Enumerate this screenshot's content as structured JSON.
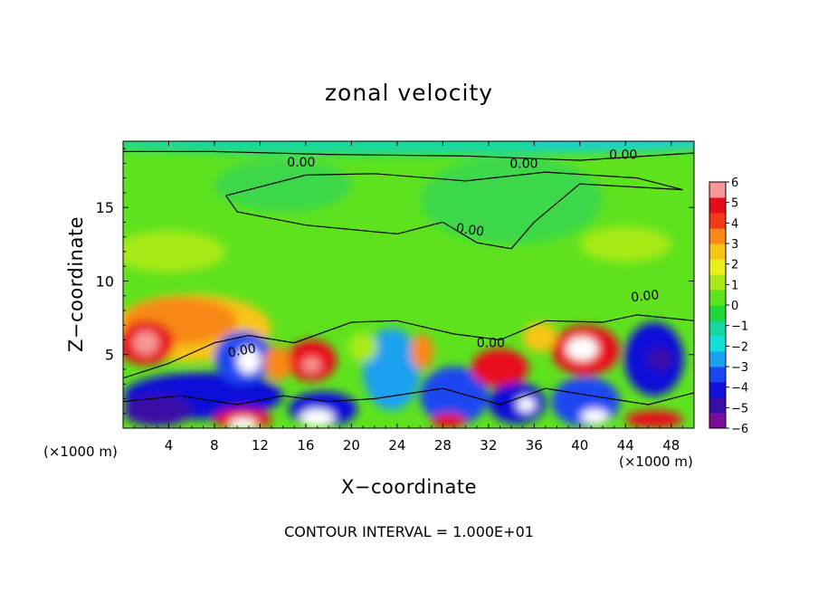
{
  "chart_data": {
    "type": "heatmap",
    "title": "zonal velocity",
    "xlabel": "X−coordinate",
    "ylabel": "Z−coordinate",
    "x_unit": "(×1000 m)",
    "xlim": [
      0,
      50
    ],
    "ylim": [
      0,
      19.5
    ],
    "x_ticks": [
      4,
      8,
      12,
      16,
      20,
      24,
      28,
      32,
      36,
      40,
      44,
      48
    ],
    "y_ticks": [
      5,
      10,
      15
    ],
    "colorbar": {
      "min": -6,
      "max": 6,
      "tick_labels": [
        "6",
        "5",
        "4",
        "3",
        "2",
        "1",
        "0",
        "−1",
        "−2",
        "−3",
        "−4",
        "−5",
        "−6"
      ],
      "colors": [
        "#7b0c9c",
        "#3a0ca8",
        "#1010d8",
        "#1a46f0",
        "#1aa0f0",
        "#12e0d8",
        "#14d8a0",
        "#1ed83a",
        "#5ee21e",
        "#a8ea18",
        "#e8f01a",
        "#f8c418",
        "#f88818",
        "#f23a18",
        "#e80c1a",
        "#f89898"
      ]
    },
    "contour_labels": [
      "0.00",
      "0.00",
      "0.00",
      "0.00",
      "0.00",
      "0.00",
      "0.00"
    ],
    "footer": "CONTOUR INTERVAL = 1.000E+01",
    "colors": {
      "background": "#ffffff",
      "upper_field": "#5ee21e",
      "top_band": "#14d8a0",
      "positive_strong": "#e80c1a",
      "negative_strong": "#1010d8",
      "saturated_positive": "#ffffff"
    }
  }
}
